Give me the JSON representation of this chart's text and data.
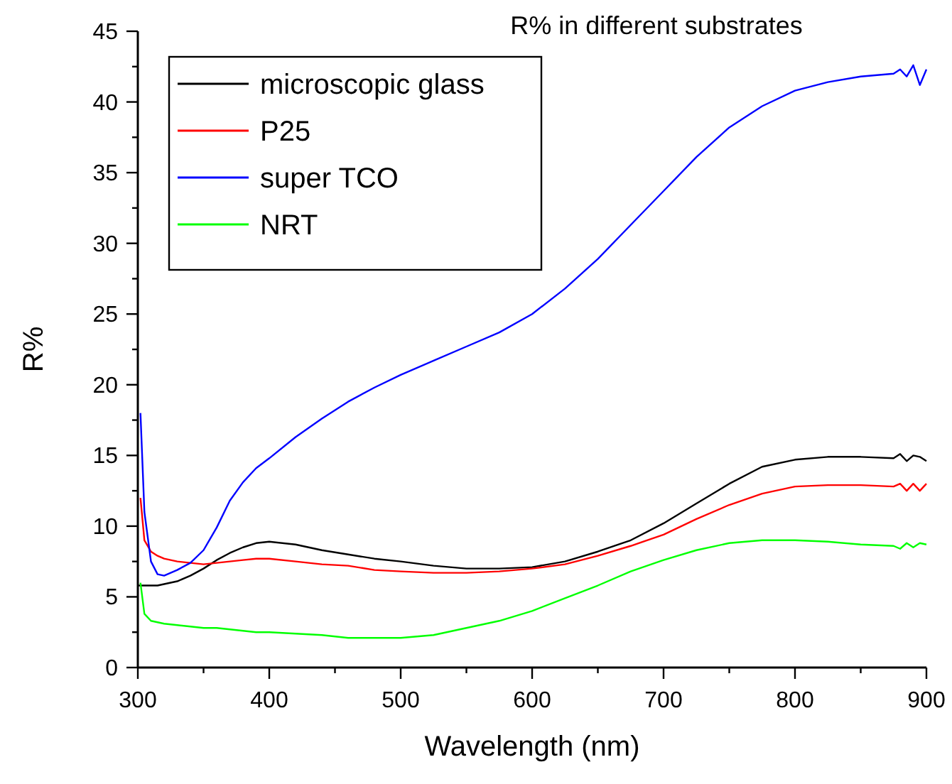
{
  "chart_data": {
    "type": "line",
    "title": "R% in different substrates",
    "xlabel": "Wavelength (nm)",
    "ylabel": "R%",
    "x": [
      300,
      302,
      305,
      310,
      315,
      320,
      330,
      340,
      350,
      360,
      370,
      380,
      390,
      400,
      420,
      440,
      460,
      480,
      500,
      525,
      550,
      575,
      600,
      625,
      650,
      675,
      700,
      725,
      750,
      775,
      800,
      825,
      850,
      875,
      880,
      885,
      890,
      895,
      900
    ],
    "series": [
      {
        "name": "microscopic glass",
        "color": "#000000",
        "values": [
          5.8,
          5.8,
          5.8,
          5.8,
          5.8,
          5.9,
          6.1,
          6.5,
          7.0,
          7.6,
          8.1,
          8.5,
          8.8,
          8.9,
          8.7,
          8.3,
          8.0,
          7.7,
          7.5,
          7.2,
          7.0,
          7.0,
          7.1,
          7.5,
          8.2,
          9.0,
          10.2,
          11.6,
          13.0,
          14.2,
          14.7,
          14.9,
          14.9,
          14.8,
          15.1,
          14.6,
          15.0,
          14.9,
          14.6
        ]
      },
      {
        "name": "P25",
        "color": "#ff0000",
        "values": [
          null,
          12,
          9,
          8.2,
          7.9,
          7.7,
          7.5,
          7.4,
          7.3,
          7.4,
          7.5,
          7.6,
          7.7,
          7.7,
          7.5,
          7.3,
          7.2,
          6.9,
          6.8,
          6.7,
          6.7,
          6.8,
          7.0,
          7.3,
          7.9,
          8.6,
          9.4,
          10.5,
          11.5,
          12.3,
          12.8,
          12.9,
          12.9,
          12.8,
          13.0,
          12.5,
          13.0,
          12.5,
          13.0
        ]
      },
      {
        "name": "super TCO",
        "color": "#0000ff",
        "values": [
          null,
          18,
          11,
          7.5,
          6.6,
          6.5,
          6.9,
          7.4,
          8.3,
          9.9,
          11.8,
          13.1,
          14.1,
          14.8,
          16.3,
          17.6,
          18.8,
          19.8,
          20.7,
          21.7,
          22.7,
          23.7,
          25.0,
          26.8,
          28.9,
          31.3,
          33.7,
          36.1,
          38.2,
          39.7,
          40.8,
          41.4,
          41.8,
          42.0,
          42.3,
          41.8,
          42.6,
          41.2,
          42.3
        ]
      },
      {
        "name": "NRT",
        "color": "#00ff00",
        "values": [
          null,
          6,
          3.8,
          3.3,
          3.2,
          3.1,
          3.0,
          2.9,
          2.8,
          2.8,
          2.7,
          2.6,
          2.5,
          2.5,
          2.4,
          2.3,
          2.1,
          2.1,
          2.1,
          2.3,
          2.8,
          3.3,
          4.0,
          4.9,
          5.8,
          6.8,
          7.6,
          8.3,
          8.8,
          9.0,
          9.0,
          8.9,
          8.7,
          8.6,
          8.4,
          8.8,
          8.5,
          8.8,
          8.7
        ]
      }
    ],
    "xlim": [
      300,
      900
    ],
    "xticks": [
      300,
      {
        "value": 350,
        "label": null
      },
      400,
      {
        "value": 450,
        "label": null
      },
      500,
      {
        "value": 550,
        "label": null
      },
      600,
      {
        "value": 650,
        "label": null
      },
      700,
      {
        "value": 750,
        "label": null
      },
      800,
      {
        "value": 850,
        "label": null
      },
      900
    ],
    "ylim": [
      0,
      45
    ],
    "yticks": [
      0,
      {
        "value": 2.5,
        "label": null
      },
      5,
      {
        "value": 7.5,
        "label": null
      },
      10,
      {
        "value": 12.5,
        "label": null
      },
      15,
      {
        "value": 17.5,
        "label": null
      },
      20,
      {
        "value": 22.5,
        "label": null
      },
      25,
      {
        "value": 27.5,
        "label": null
      },
      30,
      {
        "value": 32.5,
        "label": null
      },
      35,
      {
        "value": 37.5,
        "label": null
      },
      40,
      {
        "value": 42.5,
        "label": null
      },
      45
    ],
    "legend": "top left",
    "grid": false,
    "marker": "none",
    "line_style": "solid"
  }
}
